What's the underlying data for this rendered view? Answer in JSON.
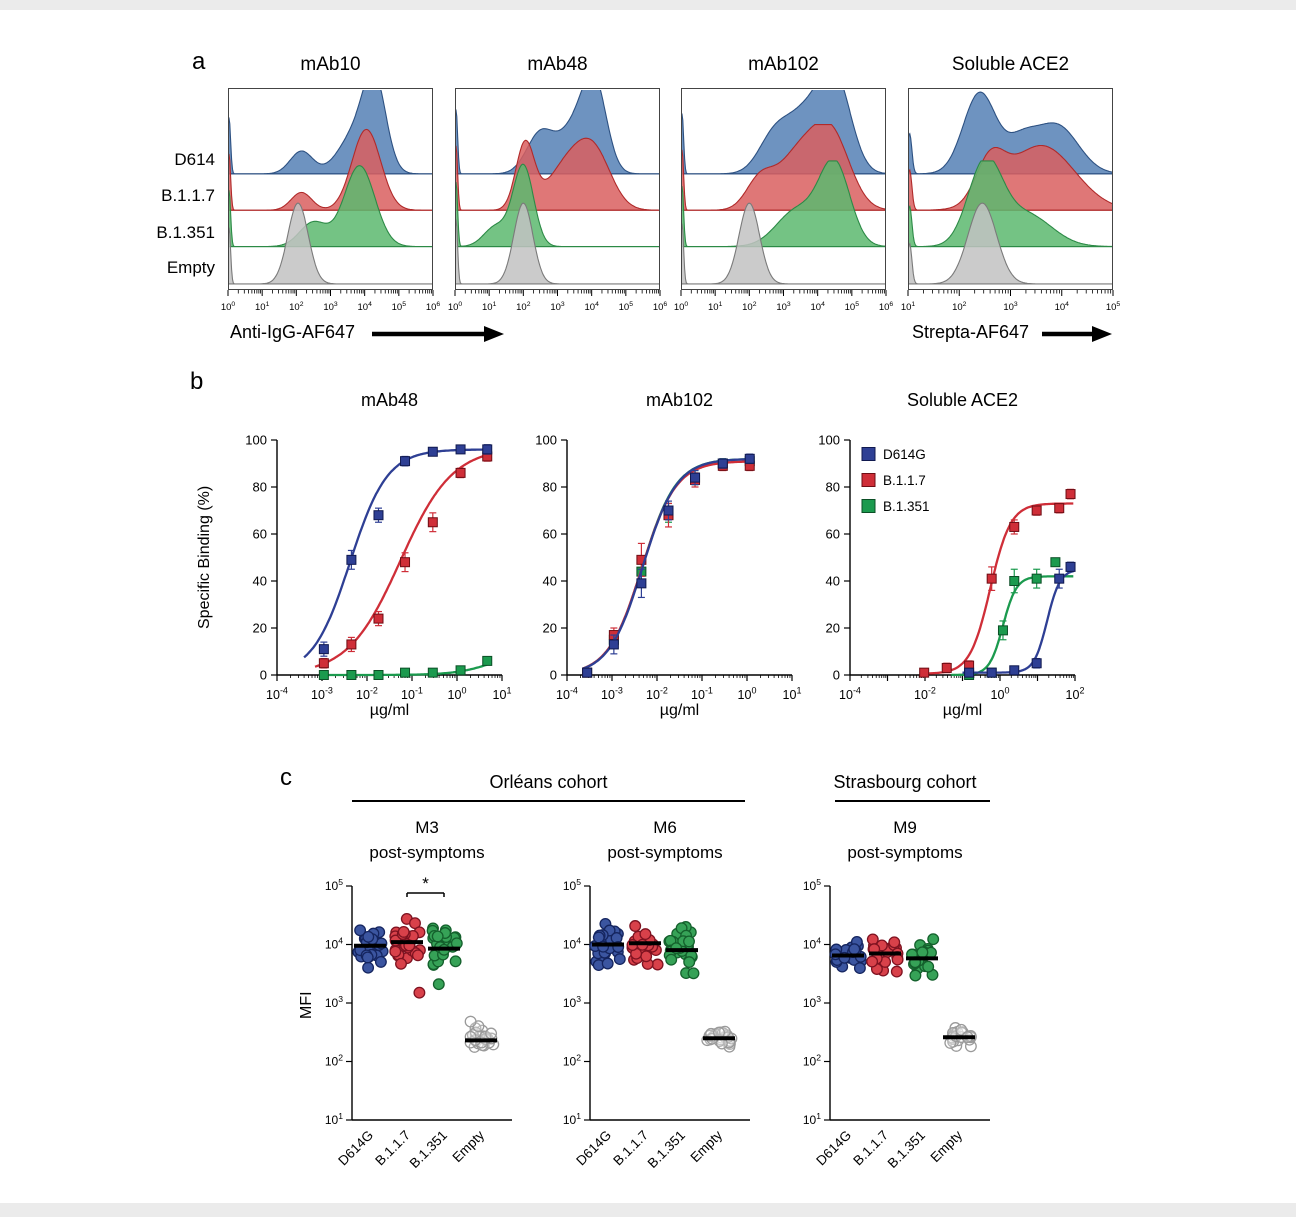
{
  "figure": {
    "panel_a_label": "a",
    "panel_b_label": "b",
    "panel_c_label": "c"
  },
  "chart_data": {
    "panel_a": {
      "type": "histogram-ridge",
      "row_labels": [
        "D614",
        "B.1.1.7",
        "B.1.351",
        "Empty"
      ],
      "row_fills": [
        "#5580b5",
        "#d95f5f",
        "#5cb86e",
        "#c2c2c2"
      ],
      "row_strokes": [
        "#2d5182",
        "#b02a2a",
        "#2c8a46",
        "#7a7a7a"
      ],
      "arrow_labels": [
        "Anti-IgG-AF647",
        "Strepta-AF647"
      ],
      "plots": [
        {
          "title": "mAb10",
          "x_log_range": [
            0,
            6
          ],
          "tick_exponents": [
            0,
            1,
            2,
            3,
            4,
            5,
            6
          ],
          "edge_spike": 0.7,
          "rows": [
            {
              "label": "D614",
              "peaks": [
                {
                  "c": 2.15,
                  "w": 0.33,
                  "h": 0.28
                },
                {
                  "c": 3.75,
                  "w": 0.5,
                  "h": 0.5
                },
                {
                  "c": 4.3,
                  "w": 0.33,
                  "h": 1.0
                }
              ]
            },
            {
              "label": "B.1.1.7",
              "peaks": [
                {
                  "c": 2.15,
                  "w": 0.3,
                  "h": 0.22
                },
                {
                  "c": 4.05,
                  "w": 0.42,
                  "h": 1.0
                }
              ]
            },
            {
              "label": "B.1.351",
              "peaks": [
                {
                  "c": 2.5,
                  "w": 0.4,
                  "h": 0.3
                },
                {
                  "c": 3.85,
                  "w": 0.45,
                  "h": 1.0
                }
              ]
            },
            {
              "label": "Empty",
              "peaks": [
                {
                  "c": 2.05,
                  "w": 0.3,
                  "h": 1.0
                }
              ]
            }
          ]
        },
        {
          "title": "mAb48",
          "x_log_range": [
            0,
            6
          ],
          "tick_exponents": [
            0,
            1,
            2,
            3,
            4,
            5,
            6
          ],
          "edge_spike": 0.8,
          "rows": [
            {
              "label": "D614",
              "peaks": [
                {
                  "c": 2.5,
                  "w": 0.4,
                  "h": 0.5
                },
                {
                  "c": 3.5,
                  "w": 0.45,
                  "h": 0.55
                },
                {
                  "c": 4.1,
                  "w": 0.35,
                  "h": 1.0
                }
              ]
            },
            {
              "label": "B.1.1.7",
              "peaks": [
                {
                  "c": 2.05,
                  "w": 0.27,
                  "h": 0.8
                },
                {
                  "c": 3.3,
                  "w": 0.6,
                  "h": 0.55
                },
                {
                  "c": 4.1,
                  "w": 0.5,
                  "h": 0.6
                }
              ]
            },
            {
              "label": "B.1.351",
              "peaks": [
                {
                  "c": 2.0,
                  "w": 0.3,
                  "h": 1.0
                },
                {
                  "c": 1.2,
                  "w": 0.35,
                  "h": 0.25
                }
              ]
            },
            {
              "label": "Empty",
              "peaks": [
                {
                  "c": 2.0,
                  "w": 0.28,
                  "h": 1.0
                }
              ]
            }
          ]
        },
        {
          "title": "mAb102",
          "x_log_range": [
            0,
            6
          ],
          "tick_exponents": [
            0,
            1,
            2,
            3,
            4,
            5,
            6
          ],
          "edge_spike": 0.75,
          "rows": [
            {
              "label": "D614",
              "peaks": [
                {
                  "c": 2.7,
                  "w": 0.45,
                  "h": 0.4
                },
                {
                  "c": 3.7,
                  "w": 0.6,
                  "h": 0.75
                },
                {
                  "c": 4.55,
                  "w": 0.45,
                  "h": 1.0
                }
              ]
            },
            {
              "label": "B.1.1.7",
              "peaks": [
                {
                  "c": 2.3,
                  "w": 0.4,
                  "h": 0.35
                },
                {
                  "c": 3.4,
                  "w": 0.6,
                  "h": 0.65
                },
                {
                  "c": 4.4,
                  "w": 0.55,
                  "h": 0.9
                }
              ]
            },
            {
              "label": "B.1.351",
              "peaks": [
                {
                  "c": 3.4,
                  "w": 0.6,
                  "h": 0.45
                },
                {
                  "c": 4.5,
                  "w": 0.45,
                  "h": 1.0
                }
              ]
            },
            {
              "label": "Empty",
              "peaks": [
                {
                  "c": 2.0,
                  "w": 0.3,
                  "h": 1.0
                }
              ]
            }
          ]
        },
        {
          "title": "Soluble ACE2",
          "x_log_range": [
            1,
            5
          ],
          "tick_exponents": [
            1,
            2,
            3,
            4,
            5
          ],
          "edge_spike": 0.5,
          "rows": [
            {
              "label": "D614",
              "peaks": [
                {
                  "c": 2.4,
                  "w": 0.32,
                  "h": 1.0
                },
                {
                  "c": 3.2,
                  "w": 0.3,
                  "h": 0.35
                },
                {
                  "c": 3.9,
                  "w": 0.42,
                  "h": 0.6
                }
              ]
            },
            {
              "label": "B.1.1.7",
              "peaks": [
                {
                  "c": 2.6,
                  "w": 0.28,
                  "h": 0.5
                },
                {
                  "c": 3.6,
                  "w": 0.65,
                  "h": 0.8
                }
              ]
            },
            {
              "label": "B.1.351",
              "peaks": [
                {
                  "c": 2.5,
                  "w": 0.33,
                  "h": 1.0
                },
                {
                  "c": 3.3,
                  "w": 0.5,
                  "h": 0.4
                }
              ]
            },
            {
              "label": "Empty",
              "peaks": [
                {
                  "c": 2.45,
                  "w": 0.28,
                  "h": 1.0
                }
              ]
            }
          ]
        }
      ]
    },
    "panel_b": {
      "type": "line",
      "ylabel": "Specific Binding (%)",
      "xlabel": "µg/ml",
      "ylim": [
        0,
        100
      ],
      "y_ticks": [
        0,
        20,
        40,
        60,
        80,
        100
      ],
      "series_names": [
        "D614G",
        "B.1.1.7",
        "B.1.351"
      ],
      "series_fills": [
        "#2e3f94",
        "#cf2e38",
        "#1b9a4e"
      ],
      "series_strokes": [
        "#10194f",
        "#6e0d14",
        "#0b4f26"
      ],
      "plots": [
        {
          "title": "mAb48",
          "x_log_range": [
            -4,
            1
          ],
          "labeled_exponents": [
            -4,
            -3,
            -2,
            -1,
            0,
            1
          ],
          "series": [
            {
              "name": "D614G",
              "x": [
                0.0011,
                0.0045,
                0.018,
                0.07,
                0.29,
                1.2,
                4.7
              ],
              "y": [
                11,
                49,
                68,
                91,
                95,
                96,
                96
              ],
              "err": [
                3,
                4,
                3,
                2,
                1,
                1,
                2
              ],
              "fit": {
                "bottom": 0,
                "top": 96,
                "ec50": 0.0042,
                "hill": 1.05,
                "xmin": 0.0004,
                "xmax": 4.7
              }
            },
            {
              "name": "B.1.1.7",
              "x": [
                0.0011,
                0.0045,
                0.018,
                0.07,
                0.29,
                1.2,
                4.7
              ],
              "y": [
                5,
                13,
                24,
                48,
                65,
                86,
                93
              ],
              "err": [
                2,
                3,
                3,
                4,
                4,
                2,
                2
              ],
              "fit": {
                "bottom": 0,
                "top": 97,
                "ec50": 0.055,
                "hill": 0.75,
                "xmin": 0.0007,
                "xmax": 4.7
              }
            },
            {
              "name": "B.1.351",
              "x": [
                0.0011,
                0.0045,
                0.018,
                0.07,
                0.29,
                1.2,
                4.7
              ],
              "y": [
                0,
                0,
                0,
                1,
                1,
                2,
                6
              ],
              "err": [
                0,
                0,
                0,
                0,
                0,
                1,
                1
              ],
              "fit": {
                "bottom": 0,
                "top": 12,
                "ec50": 8,
                "hill": 1,
                "xmin": 0.001,
                "xmax": 4.7
              }
            }
          ]
        },
        {
          "title": "mAb102",
          "x_log_range": [
            -4,
            1
          ],
          "labeled_exponents": [
            -4,
            -3,
            -2,
            -1,
            0,
            1
          ],
          "series": [
            {
              "name": "D614G",
              "x": [
                0.00028,
                0.0011,
                0.0045,
                0.018,
                0.07,
                0.29,
                1.15
              ],
              "y": [
                1,
                13,
                39,
                70,
                84,
                90,
                92
              ],
              "err": [
                1,
                4,
                6,
                4,
                3,
                2,
                2
              ],
              "fit": {
                "bottom": 0,
                "top": 92,
                "ec50": 0.0048,
                "hill": 1.15,
                "xmin": 0.00022,
                "xmax": 1.3
              }
            },
            {
              "name": "B.1.1.7",
              "x": [
                0.00028,
                0.0011,
                0.0045,
                0.018,
                0.07,
                0.29,
                1.15
              ],
              "y": [
                1,
                17,
                49,
                68,
                83,
                89,
                89
              ],
              "err": [
                1,
                3,
                7,
                5,
                3,
                2,
                2
              ],
              "fit": {
                "bottom": 0,
                "top": 91,
                "ec50": 0.0046,
                "hill": 1.15,
                "xmin": 0.00022,
                "xmax": 1.3
              }
            },
            {
              "name": "B.1.351",
              "x": [
                0.00028,
                0.0011,
                0.0045,
                0.018,
                0.07,
                0.29,
                1.15
              ],
              "y": [
                1,
                15,
                44,
                69,
                84,
                90,
                91
              ],
              "err": [
                1,
                3,
                5,
                4,
                3,
                2,
                2
              ],
              "fit": {
                "bottom": 0,
                "top": 92,
                "ec50": 0.0047,
                "hill": 1.15,
                "xmin": 0.00022,
                "xmax": 1.3
              }
            }
          ]
        },
        {
          "title": "Soluble ACE2",
          "x_log_range": [
            -4,
            2
          ],
          "labeled_exponents": [
            -4,
            -2,
            0,
            2
          ],
          "show_legend": true,
          "series": [
            {
              "name": "D614G",
              "x": [
                0.15,
                0.6,
                2.4,
                9.5,
                38,
                76
              ],
              "y": [
                1,
                1,
                2,
                5,
                41,
                46
              ],
              "err": [
                1,
                1,
                1,
                2,
                4,
                2
              ],
              "fit": {
                "bottom": 1,
                "top": 45,
                "ec50": 18,
                "hill": 2.5,
                "xmin": 0.1,
                "xmax": 90
              }
            },
            {
              "name": "B.1.1.7",
              "x": [
                0.0095,
                0.038,
                0.15,
                0.6,
                2.4,
                9.5,
                38,
                76
              ],
              "y": [
                1,
                3,
                4,
                41,
                63,
                70,
                71,
                77
              ],
              "err": [
                1,
                2,
                2,
                5,
                3,
                2,
                2,
                2
              ],
              "fit": {
                "bottom": 0.5,
                "top": 73,
                "ec50": 0.55,
                "hill": 1.6,
                "xmin": 0.008,
                "xmax": 90
              }
            },
            {
              "name": "B.1.351",
              "x": [
                0.15,
                0.6,
                1.2,
                2.4,
                9.5,
                30
              ],
              "y": [
                0,
                1,
                19,
                40,
                41,
                48
              ],
              "err": [
                0,
                1,
                4,
                5,
                4,
                0
              ],
              "fit": {
                "bottom": 0,
                "top": 42,
                "ec50": 1.2,
                "hill": 2.4,
                "xmin": 0.05,
                "xmax": 90
              }
            }
          ]
        }
      ]
    },
    "panel_c": {
      "type": "scatter",
      "ylabel": "MFI",
      "y_exponent_range": [
        1,
        5
      ],
      "categories": [
        "D614G",
        "B.1.1.7",
        "B.1.351",
        "Empty"
      ],
      "group_fills": [
        "#3b55a0",
        "#d8414a",
        "#36a257",
        "none"
      ],
      "group_strokes": [
        "#15255f",
        "#7e1220",
        "#14602c",
        "#9a9a9a"
      ],
      "cohorts": [
        {
          "name": "Orléans cohort"
        },
        {
          "name": "Strasbourg cohort"
        }
      ],
      "plots": [
        {
          "title": "M3",
          "subtitle": "post-symptoms",
          "seed": 11,
          "groups": [
            {
              "category": "D614G",
              "median": 9500,
              "log_sd": 0.17,
              "n": 28,
              "outliers": []
            },
            {
              "category": "B.1.1.7",
              "median": 11000,
              "log_sd": 0.18,
              "n": 28,
              "outliers": [
                1500
              ]
            },
            {
              "category": "B.1.351",
              "median": 8500,
              "log_sd": 0.19,
              "n": 28,
              "outliers": [
                2100
              ]
            },
            {
              "category": "Empty",
              "median": 230,
              "log_sd": 0.11,
              "n": 26,
              "outliers": [
                480
              ]
            }
          ],
          "significance": [
            {
              "a": 1,
              "b": 2,
              "label": "*"
            }
          ]
        },
        {
          "title": "M6",
          "subtitle": "post-symptoms",
          "seed": 22,
          "groups": [
            {
              "category": "D614G",
              "median": 10000,
              "log_sd": 0.16,
              "n": 30,
              "outliers": []
            },
            {
              "category": "B.1.1.7",
              "median": 10500,
              "log_sd": 0.17,
              "n": 30,
              "outliers": []
            },
            {
              "category": "B.1.351",
              "median": 8000,
              "log_sd": 0.18,
              "n": 30,
              "outliers": []
            },
            {
              "category": "Empty",
              "median": 250,
              "log_sd": 0.09,
              "n": 26,
              "outliers": []
            }
          ],
          "significance": []
        },
        {
          "title": "M9",
          "subtitle": "post-symptoms",
          "seed": 33,
          "groups": [
            {
              "category": "D614G",
              "median": 6500,
              "log_sd": 0.14,
              "n": 26,
              "outliers": []
            },
            {
              "category": "B.1.1.7",
              "median": 7000,
              "log_sd": 0.14,
              "n": 26,
              "outliers": []
            },
            {
              "category": "B.1.351",
              "median": 5800,
              "log_sd": 0.15,
              "n": 26,
              "outliers": []
            },
            {
              "category": "Empty",
              "median": 260,
              "log_sd": 0.08,
              "n": 24,
              "outliers": []
            }
          ],
          "significance": []
        }
      ]
    }
  }
}
